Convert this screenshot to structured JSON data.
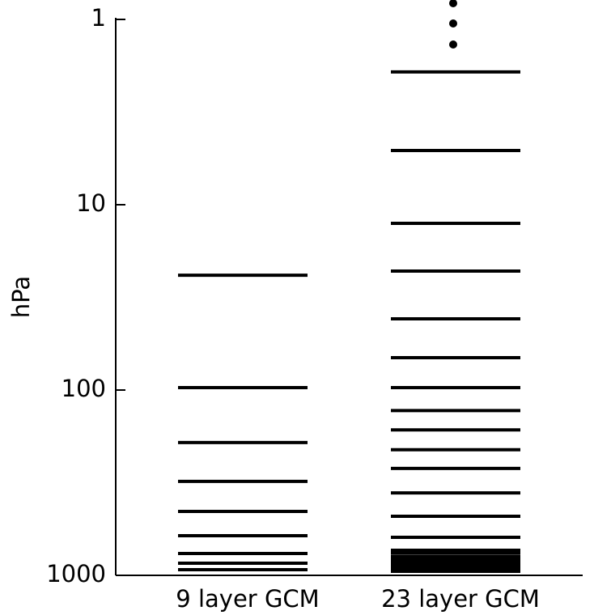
{
  "chart_data": {
    "type": "levels",
    "y_label": "hPa",
    "categories": [
      "9 layer GCM",
      "23 layer GCM"
    ],
    "values": [
      [
        24,
        97,
        192,
        311,
        452,
        611,
        762,
        860,
        932
      ],
      [
        1.92,
        5.1,
        12.6,
        22.8,
        41.3,
        66.9,
        97,
        129,
        164,
        210,
        265,
        359,
        480,
        623,
        732,
        760,
        794,
        818,
        843,
        869,
        895,
        923,
        951
      ]
    ],
    "color": "#000000",
    "ylim": [
      1,
      1000
    ],
    "yticks": [
      1,
      10,
      100,
      1000
    ],
    "log_scale": true,
    "y_inverted": true
  }
}
